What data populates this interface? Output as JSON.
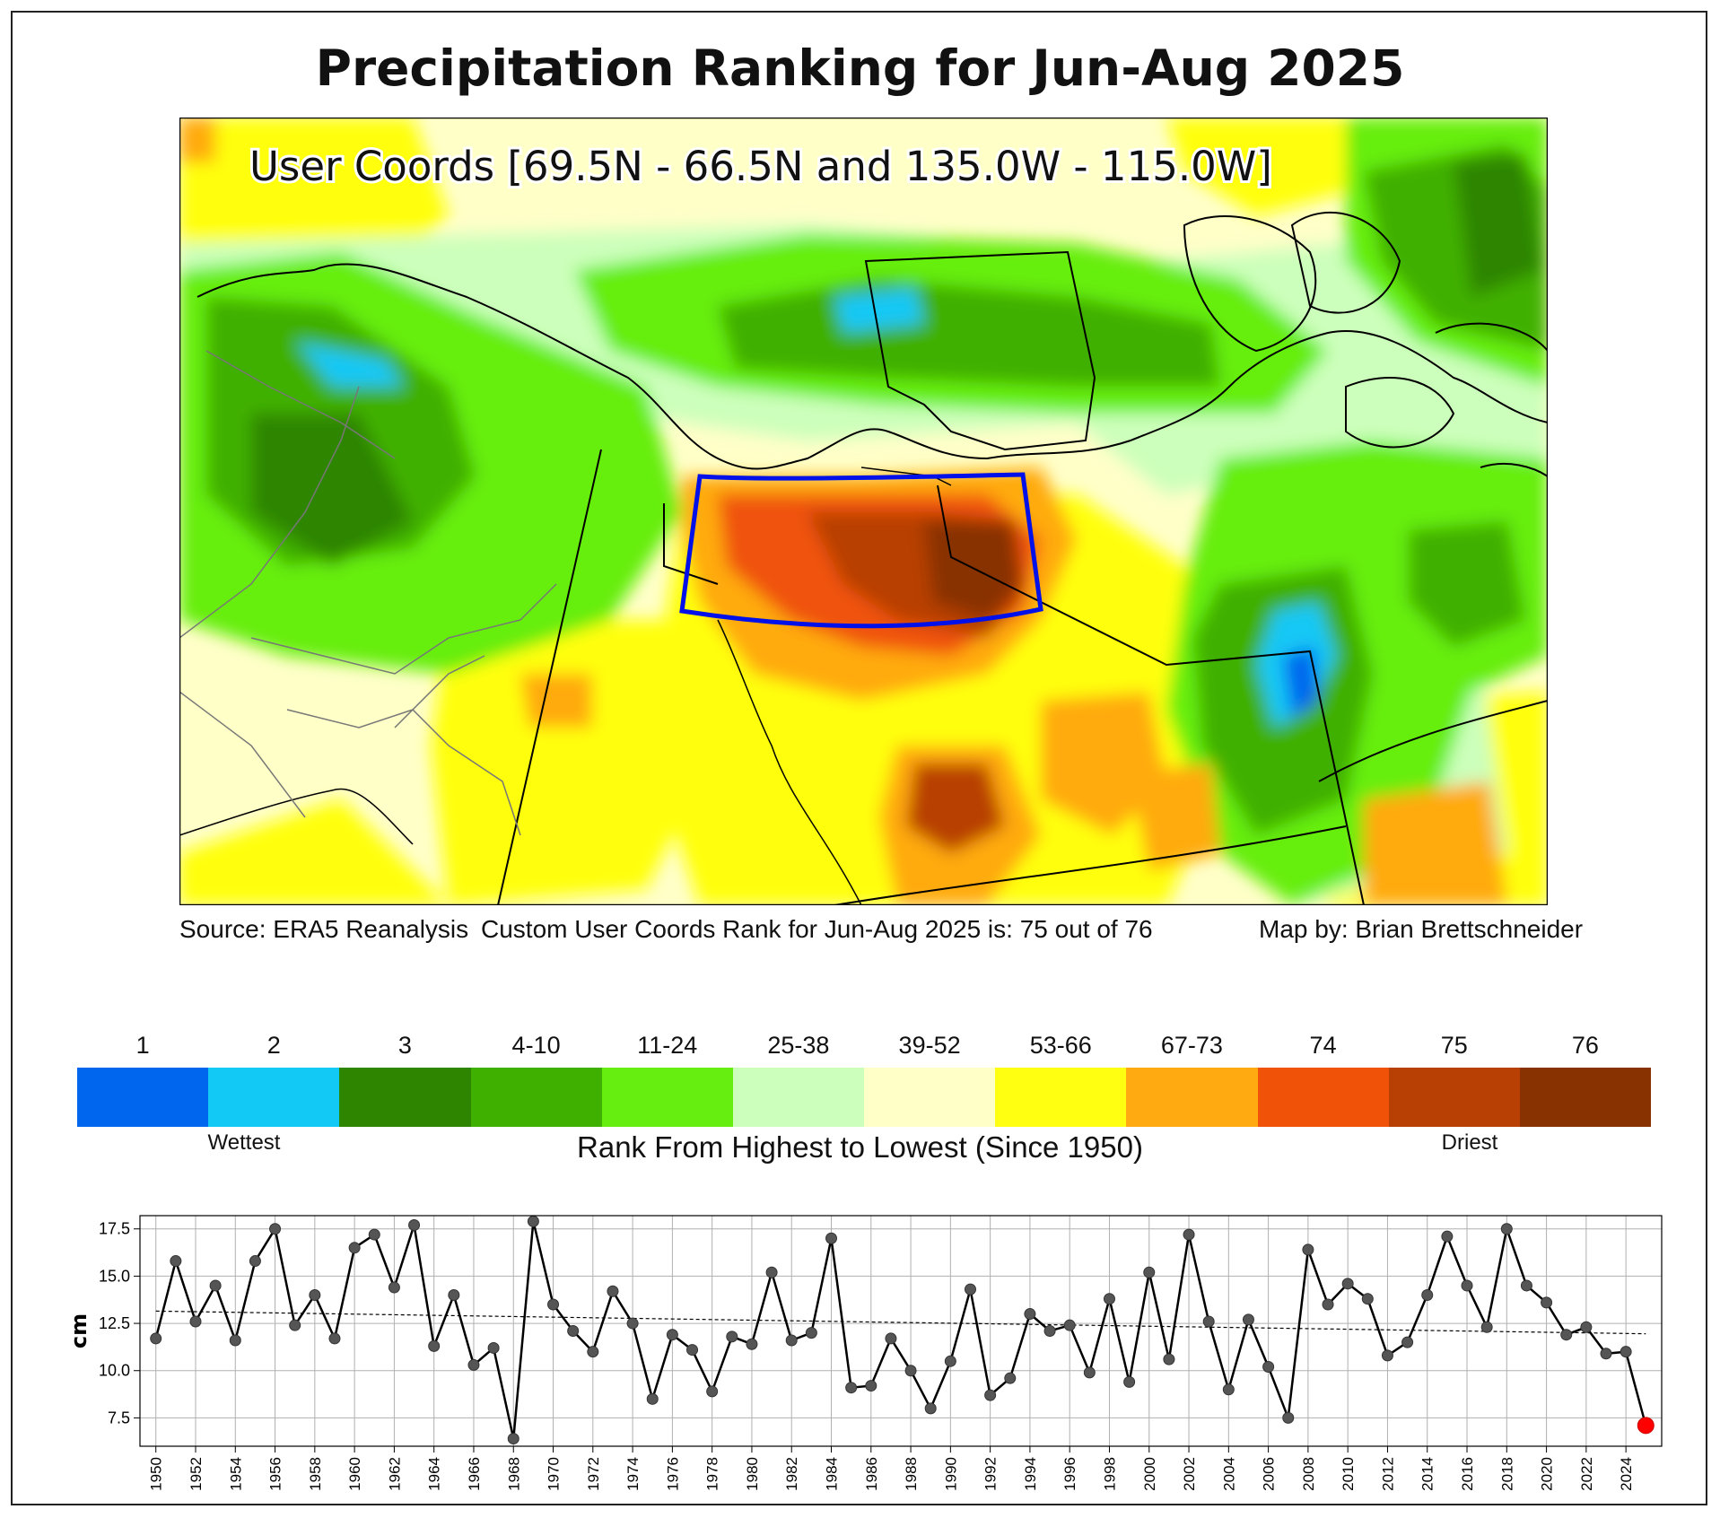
{
  "title": "Precipitation Ranking for Jun-Aug 2025",
  "map": {
    "overlay_title": "User Coords [69.5N - 66.5N and 135.0W - 115.0W]",
    "source": "Source: ERA5 Reanalysis",
    "rank_text": "Custom User Coords Rank for Jun-Aug 2025 is: 75 out of 76",
    "credit": "Map by: Brian Brettschneider"
  },
  "colorbar": {
    "bins": [
      {
        "label": "1",
        "color": "#0066ee"
      },
      {
        "label": "2",
        "color": "#12c8f5"
      },
      {
        "label": "3",
        "color": "#2d8500"
      },
      {
        "label": "4-10",
        "color": "#3fb000"
      },
      {
        "label": "11-24",
        "color": "#66ee11"
      },
      {
        "label": "25-38",
        "color": "#ccffbb"
      },
      {
        "label": "39-52",
        "color": "#ffffc8"
      },
      {
        "label": "53-66",
        "color": "#ffff11"
      },
      {
        "label": "67-73",
        "color": "#ffaa11"
      },
      {
        "label": "74",
        "color": "#f05208"
      },
      {
        "label": "75",
        "color": "#b84004"
      },
      {
        "label": "76",
        "color": "#883202"
      }
    ],
    "wet_label": "Wettest",
    "dry_label": "Driest",
    "title": "Rank From Highest to Lowest (Since 1950)"
  },
  "chart_data": {
    "type": "line",
    "title": "",
    "xlabel": "",
    "ylabel": "cm",
    "xlim": [
      1949.2,
      2025.8
    ],
    "ylim": [
      6.0,
      18.2
    ],
    "yticks": [
      7.5,
      10.0,
      12.5,
      15.0,
      17.5
    ],
    "xticks": [
      1950,
      1952,
      1954,
      1956,
      1958,
      1960,
      1962,
      1964,
      1966,
      1968,
      1970,
      1972,
      1974,
      1976,
      1978,
      1980,
      1982,
      1984,
      1986,
      1988,
      1990,
      1992,
      1994,
      1996,
      1998,
      2000,
      2002,
      2004,
      2006,
      2008,
      2010,
      2012,
      2014,
      2016,
      2018,
      2020,
      2022,
      2024
    ],
    "grid": true,
    "x_start": 1950,
    "values": [
      11.7,
      15.8,
      12.6,
      14.5,
      11.6,
      15.8,
      17.5,
      12.4,
      14.0,
      11.7,
      16.5,
      17.2,
      14.4,
      17.7,
      11.3,
      14.0,
      10.3,
      11.2,
      6.4,
      17.9,
      13.5,
      12.1,
      11.0,
      14.2,
      12.5,
      8.5,
      11.9,
      11.1,
      8.9,
      11.8,
      11.4,
      15.2,
      11.6,
      12.0,
      17.0,
      9.1,
      9.2,
      11.7,
      10.0,
      8.0,
      10.5,
      14.3,
      8.7,
      9.6,
      13.0,
      12.1,
      12.4,
      9.9,
      13.8,
      9.4,
      15.2,
      10.6,
      17.2,
      12.6,
      9.0,
      12.7,
      10.2,
      7.5,
      16.4,
      13.5,
      14.6,
      13.8,
      10.8,
      11.5,
      14.0,
      17.1,
      14.5,
      12.3,
      17.5,
      14.5,
      13.6,
      11.9,
      12.3,
      10.9,
      11.0,
      7.1
    ],
    "trend": {
      "start": 13.15,
      "end": 11.95
    },
    "highlight": {
      "year": 2025,
      "value": 7.1,
      "color": "#ff0000"
    }
  }
}
